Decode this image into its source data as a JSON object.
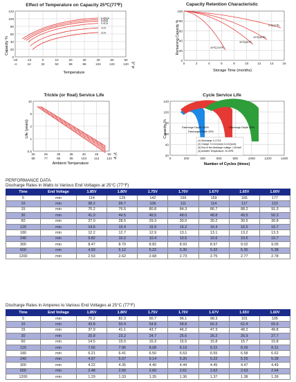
{
  "charts": {
    "temp_capacity": {
      "title": "Effect of Temperature on Capacity  25℃(77℉)",
      "ylabel": "Capacity %",
      "xlabel": "Temperature",
      "yticks": [
        "120",
        "100",
        "80",
        "60",
        "40",
        "20",
        "0"
      ],
      "xticks_c": [
        "-20",
        "-10",
        "0",
        "10",
        "20",
        "30",
        "40",
        "50",
        "60"
      ],
      "xticks_f": [
        "-4",
        "14",
        "32",
        "50",
        "68",
        "86",
        "104",
        "122",
        "140"
      ],
      "xunits": [
        "℃",
        "℉"
      ],
      "series_labels": [
        "0.05CA",
        "0.1CA",
        "0.2CA",
        "0.4CA",
        "1CA",
        "2CA"
      ]
    },
    "retention": {
      "title": "Capacity Retention Characteristic",
      "ylabel": "Remaining Capacity %",
      "xlabel": "Storage Time (months)",
      "yticks": [
        "100",
        "80",
        "60",
        "40",
        "20",
        "0"
      ],
      "xticks": [
        "0",
        "2",
        "4",
        "6",
        "8",
        "10",
        "12",
        "14",
        "16"
      ],
      "series_labels": [
        "0℃(32℉)",
        "20℃(68℉)",
        "30℃(86℉)",
        "40℃(104℉)"
      ]
    },
    "trickle": {
      "title": "Trickle (or float) Service Life",
      "ylabel": "Life (years)",
      "xlabel": "Ambient Temperature",
      "yticks": [
        "10",
        "5",
        "2",
        "1",
        "0.5"
      ],
      "xticks_c": [
        "20",
        "25",
        "30",
        "35",
        "40",
        "45",
        "50"
      ],
      "xticks_f": [
        "68",
        "77",
        "86",
        "95",
        "104",
        "113",
        "122"
      ],
      "xunits": [
        "℃",
        "℉"
      ]
    },
    "cycle": {
      "title": "Cycle Service Life",
      "ylabel": "Capacity %",
      "xlabel": "Number of Cycles (times)",
      "yticks": [
        "120",
        "100",
        "80",
        "60",
        "40",
        "20"
      ],
      "xticks": [
        "0",
        "200",
        "400",
        "600",
        "800",
        "1000",
        "1200",
        "1400"
      ],
      "series_labels": [
        "Discharge Depth 100%",
        "Discharge Depth 50%",
        "Discharge Depth 30%"
      ],
      "legend_lines": [
        "(1) Discharge: 0.17CA",
        "(2) Charge: 0.1CA (max) 14.4V(cont)",
        "(3) End of the discharge voltage: 1.8V/cell",
        "(4) Ambient Temperature: 20-25℃"
      ]
    }
  },
  "performance_heading": "PERFORMANCE DATA",
  "watts_table": {
    "title": "Discharge Rates in Watts to Various End Voltages at 25°C (77°F)",
    "headers": [
      "Time",
      "End Voltage",
      "1.85V",
      "1.80V",
      "1.75V",
      "1.70V",
      "1.67V",
      "1.65V",
      "1.60V"
    ],
    "rows": [
      [
        "5",
        "min",
        "114",
        "129",
        "142",
        "155",
        "159",
        "165",
        "177"
      ],
      [
        "10",
        "min",
        "98.2",
        "99.7",
        "106",
        "111",
        "114",
        "117",
        "122"
      ],
      [
        "15",
        "min",
        "70.2",
        "76.5",
        "80.8",
        "84.3",
        "86.7",
        "88.2",
        "91.3"
      ],
      [
        "30",
        "min",
        "41.0",
        "44.5",
        "46.5",
        "48.0",
        "48.8",
        "49.5",
        "50.3"
      ],
      [
        "60",
        "min",
        "27.0",
        "28.5",
        "29.3",
        "30.0",
        "30.2",
        "30.5",
        "30.8"
      ],
      [
        "120",
        "min",
        "14.6",
        "15.4",
        "15.9",
        "16.2",
        "16.4",
        "16.5",
        "16.7"
      ],
      [
        "180",
        "min",
        "12.2",
        "12.7",
        "12.9",
        "13.1",
        "13.1",
        "13.2",
        "13.3"
      ],
      [
        "240",
        "min",
        "9.82",
        "10.2",
        "10.4",
        "10.5",
        "10.6",
        "10.6",
        "10.7"
      ],
      [
        "300",
        "min",
        "8.47",
        "8.70",
        "8.82",
        "8.93",
        "8.97",
        "9.02",
        "9.05"
      ],
      [
        "600",
        "min",
        "4.93",
        "5.12",
        "5.22",
        "5.30",
        "5.32",
        "5.35",
        "5.38"
      ],
      [
        "1200",
        "min",
        "2.53",
        "2.62",
        "2.68",
        "2.73",
        "2.75",
        "2.77",
        "2.78"
      ]
    ]
  },
  "amps_table": {
    "title": "Discharge Rates in Amperes to Various End Voltages at 25°C (77°F)",
    "headers": [
      "Time",
      "End Voltage",
      "1.85V",
      "1.80V",
      "1.75V",
      "1.70V",
      "1.67V",
      "1.65V",
      "1.60V"
    ],
    "rows": [
      [
        "5",
        "min",
        "70.2",
        "82.3",
        "90.7",
        "96.1",
        "98.3",
        "101",
        "105"
      ],
      [
        "10",
        "min",
        "43.8",
        "50.4",
        "54.8",
        "58.8",
        "60.3",
        "62.4",
        "65.6"
      ],
      [
        "15",
        "min",
        "37.9",
        "41.1",
        "43.7",
        "46.2",
        "47.3",
        "48.2",
        "49.8"
      ],
      [
        "30",
        "min",
        "20.8",
        "23.2",
        "24.7",
        "25.6",
        "26.2",
        "26.9",
        "27.7"
      ],
      [
        "60",
        "min",
        "14.5",
        "15.0",
        "15.3",
        "15.5",
        "15.8",
        "15.7",
        "15.8"
      ],
      [
        "120",
        "min",
        "7.65",
        "7.96",
        "8.08",
        "8.19",
        "8.22",
        "8.26",
        "8.31"
      ],
      [
        "180",
        "min",
        "6.21",
        "6.41",
        "6.50",
        "6.53",
        "6.55",
        "6.58",
        "6.62"
      ],
      [
        "240",
        "min",
        "4.97",
        "5.07",
        "5.14",
        "5.20",
        "5.22",
        "5.25",
        "5.28"
      ],
      [
        "300",
        "min",
        "4.22",
        "4.35",
        "4.40",
        "4.44",
        "4.45",
        "4.47",
        "4.49"
      ],
      [
        "600",
        "min",
        "2.48",
        "2.56",
        "2.60",
        "2.61",
        "2.62",
        "2.63",
        "2.64"
      ],
      [
        "1200",
        "min",
        "1.29",
        "1.33",
        "1.35",
        "1.36",
        "1.37",
        "1.38",
        "1.39"
      ]
    ]
  },
  "colors": {
    "header_bg": "#1b2b8a",
    "alt_row": "#a9aedb",
    "curve_red": "#e53935",
    "cycle_blue": "#1e88e5",
    "cycle_green": "#2e9e3a"
  }
}
